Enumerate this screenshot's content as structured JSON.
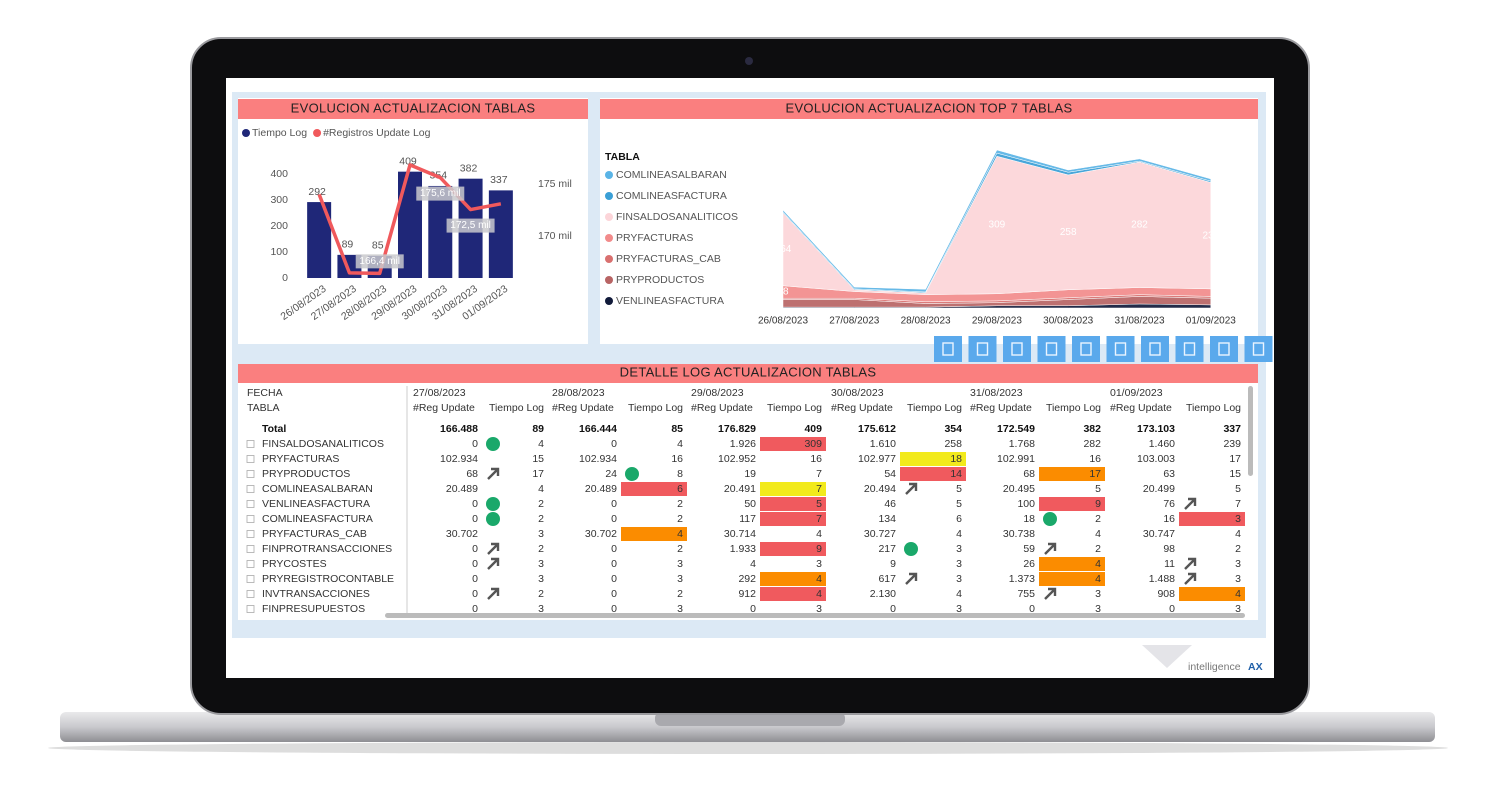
{
  "chart_data": [
    {
      "type": "bar",
      "title": "EVOLUCION ACTUALIZACION TABLAS",
      "categories": [
        "26/08/2023",
        "27/08/2023",
        "28/08/2023",
        "29/08/2023",
        "30/08/2023",
        "31/08/2023",
        "01/09/2023"
      ],
      "series": [
        {
          "name": "Tiempo Log",
          "type": "bar",
          "color": "#1f2778",
          "values": [
            292,
            89,
            85,
            409,
            354,
            382,
            337
          ]
        },
        {
          "name": "#Registros Update Log",
          "type": "line",
          "axis": "y2",
          "color": "#f0595c",
          "values": [
            174000,
            166488,
            166444,
            176829,
            175612,
            172549,
            173103
          ],
          "value_labels": [
            null,
            null,
            "166,4 mil",
            null,
            "175,6 mil",
            "172,5 mil",
            null
          ]
        }
      ],
      "ylim": [
        0,
        450
      ],
      "yticks": [
        0,
        100,
        200,
        300,
        400
      ],
      "y2lim": [
        166000,
        177200
      ],
      "y2ticks": [
        {
          "value": 170000,
          "label": "170 mil"
        },
        {
          "value": 175000,
          "label": "175 mil"
        }
      ]
    },
    {
      "type": "area",
      "title": "EVOLUCION ACTUALIZACION TOP 7 TABLAS",
      "legend_title": "TABLA",
      "stacked": true,
      "x": [
        "26/08/2023",
        "27/08/2023",
        "28/08/2023",
        "29/08/2023",
        "30/08/2023",
        "31/08/2023",
        "01/09/2023"
      ],
      "series": [
        {
          "name": "COMLINEASALBARAN",
          "color": "#5ab4e6",
          "values": [
            4,
            4,
            6,
            7,
            5,
            5,
            5
          ]
        },
        {
          "name": "COMLINEASFACTURA",
          "color": "#3a9fd6",
          "values": [
            2,
            2,
            2,
            7,
            6,
            2,
            3
          ]
        },
        {
          "name": "FINSALDOSANALITICOS",
          "color": "#fcd5d9",
          "values": [
            164,
            4,
            4,
            309,
            258,
            282,
            239
          ]
        },
        {
          "name": "PRYFACTURAS",
          "color": "#f28b8b",
          "values": [
            28,
            15,
            16,
            16,
            18,
            16,
            17
          ]
        },
        {
          "name": "PRYFACTURAS_CAB",
          "color": "#d9706f",
          "values": [
            3,
            3,
            4,
            4,
            4,
            4,
            4
          ]
        },
        {
          "name": "PRYPRODUCTOS",
          "color": "#b86464",
          "values": [
            17,
            17,
            8,
            7,
            14,
            17,
            15
          ]
        },
        {
          "name": "VENLINEASFACTURA",
          "color": "#111a3a",
          "values": [
            2,
            2,
            2,
            5,
            5,
            9,
            7
          ]
        }
      ]
    }
  ],
  "table": {
    "title": "DETALLE LOG ACTUALIZACION TABLAS",
    "row_header": "FECHA",
    "column_header": "TABLA",
    "dates": [
      "27/08/2023",
      "28/08/2023",
      "29/08/2023",
      "30/08/2023",
      "31/08/2023",
      "01/09/2023"
    ],
    "measures": [
      "#Reg Update",
      "Tiempo Log"
    ],
    "rows": [
      {
        "name": "Total",
        "cells": [
          "166.488",
          "89",
          "166.444",
          "85",
          "176.829",
          "409",
          "175.612",
          "354",
          "172.549",
          "382",
          "173.103",
          "337"
        ]
      },
      {
        "name": "FINSALDOSANALITICOS",
        "cells": [
          "0",
          "4",
          "0",
          "4",
          "1.926",
          "309",
          "1.610",
          "258",
          "1.768",
          "282",
          "1.460",
          "239"
        ],
        "icons": [
          "circle",
          null,
          null,
          null,
          null,
          null
        ],
        "highlights": [
          null,
          null,
          "#f05a5e",
          null,
          null,
          null
        ]
      },
      {
        "name": "PRYFACTURAS",
        "cells": [
          "102.934",
          "15",
          "102.934",
          "16",
          "102.952",
          "16",
          "102.977",
          "18",
          "102.991",
          "16",
          "103.003",
          "17"
        ],
        "highlights": [
          null,
          null,
          null,
          "#f2ea1c",
          null,
          null
        ]
      },
      {
        "name": "PRYPRODUCTOS",
        "cells": [
          "68",
          "17",
          "24",
          "8",
          "19",
          "7",
          "54",
          "14",
          "68",
          "17",
          "63",
          "15"
        ],
        "icons": [
          "arrow",
          "circle",
          null,
          null,
          null,
          null
        ],
        "highlights": [
          null,
          null,
          null,
          "#f05a5e",
          "#fb8c00",
          null
        ]
      },
      {
        "name": "COMLINEASALBARAN",
        "cells": [
          "20.489",
          "4",
          "20.489",
          "6",
          "20.491",
          "7",
          "20.494",
          "5",
          "20.495",
          "5",
          "20.499",
          "5"
        ],
        "icons": [
          null,
          null,
          null,
          "arrow",
          null,
          null
        ],
        "highlights": [
          null,
          "#f05a5e",
          "#f2ea1c",
          null,
          null,
          null
        ]
      },
      {
        "name": "VENLINEASFACTURA",
        "cells": [
          "0",
          "2",
          "0",
          "2",
          "50",
          "5",
          "46",
          "5",
          "100",
          "9",
          "76",
          "7"
        ],
        "icons": [
          "circle",
          null,
          null,
          null,
          null,
          "arrow"
        ],
        "highlights": [
          null,
          null,
          "#f05a5e",
          null,
          "#f05a5e",
          null
        ]
      },
      {
        "name": "COMLINEASFACTURA",
        "cells": [
          "0",
          "2",
          "0",
          "2",
          "117",
          "7",
          "134",
          "6",
          "18",
          "2",
          "16",
          "3"
        ],
        "icons": [
          "circle",
          null,
          null,
          null,
          "circle",
          null
        ],
        "highlights": [
          null,
          null,
          "#f05a5e",
          null,
          null,
          "#f05a5e"
        ]
      },
      {
        "name": "PRYFACTURAS_CAB",
        "cells": [
          "30.702",
          "3",
          "30.702",
          "4",
          "30.714",
          "4",
          "30.727",
          "4",
          "30.738",
          "4",
          "30.747",
          "4"
        ],
        "highlights": [
          null,
          "#fb8c00",
          null,
          null,
          null,
          null
        ]
      },
      {
        "name": "FINPROTRANSACCIONES",
        "cells": [
          "0",
          "2",
          "0",
          "2",
          "1.933",
          "9",
          "217",
          "3",
          "59",
          "2",
          "98",
          "2"
        ],
        "icons": [
          "arrow",
          null,
          null,
          "circle",
          "arrow",
          null
        ],
        "highlights": [
          null,
          null,
          "#f05a5e",
          null,
          null,
          null
        ]
      },
      {
        "name": "PRYCOSTES",
        "cells": [
          "0",
          "3",
          "0",
          "3",
          "4",
          "3",
          "9",
          "3",
          "26",
          "4",
          "11",
          "3"
        ],
        "icons": [
          "arrow",
          null,
          null,
          null,
          null,
          "arrow"
        ],
        "highlights": [
          null,
          null,
          null,
          null,
          "#fb8c00",
          null
        ]
      },
      {
        "name": "PRYREGISTROCONTABLE",
        "cells": [
          "0",
          "3",
          "0",
          "3",
          "292",
          "4",
          "617",
          "3",
          "1.373",
          "4",
          "1.488",
          "3"
        ],
        "icons": [
          null,
          null,
          null,
          "arrow",
          null,
          "arrow"
        ],
        "highlights": [
          null,
          null,
          "#fb8c00",
          null,
          "#fb8c00",
          null
        ]
      },
      {
        "name": "INVTRANSACCIONES",
        "cells": [
          "0",
          "2",
          "0",
          "2",
          "912",
          "4",
          "2.130",
          "4",
          "755",
          "3",
          "908",
          "4"
        ],
        "icons": [
          "arrow",
          null,
          null,
          null,
          "arrow",
          null
        ],
        "highlights": [
          null,
          null,
          "#f05a5e",
          null,
          null,
          "#fb8c00"
        ]
      },
      {
        "name": "FINPRESUPUESTOS",
        "cells": [
          "0",
          "3",
          "0",
          "3",
          "0",
          "3",
          "0",
          "3",
          "0",
          "3",
          "0",
          "3"
        ]
      }
    ]
  },
  "brand": {
    "name": "intelligence",
    "accent": "AX"
  }
}
